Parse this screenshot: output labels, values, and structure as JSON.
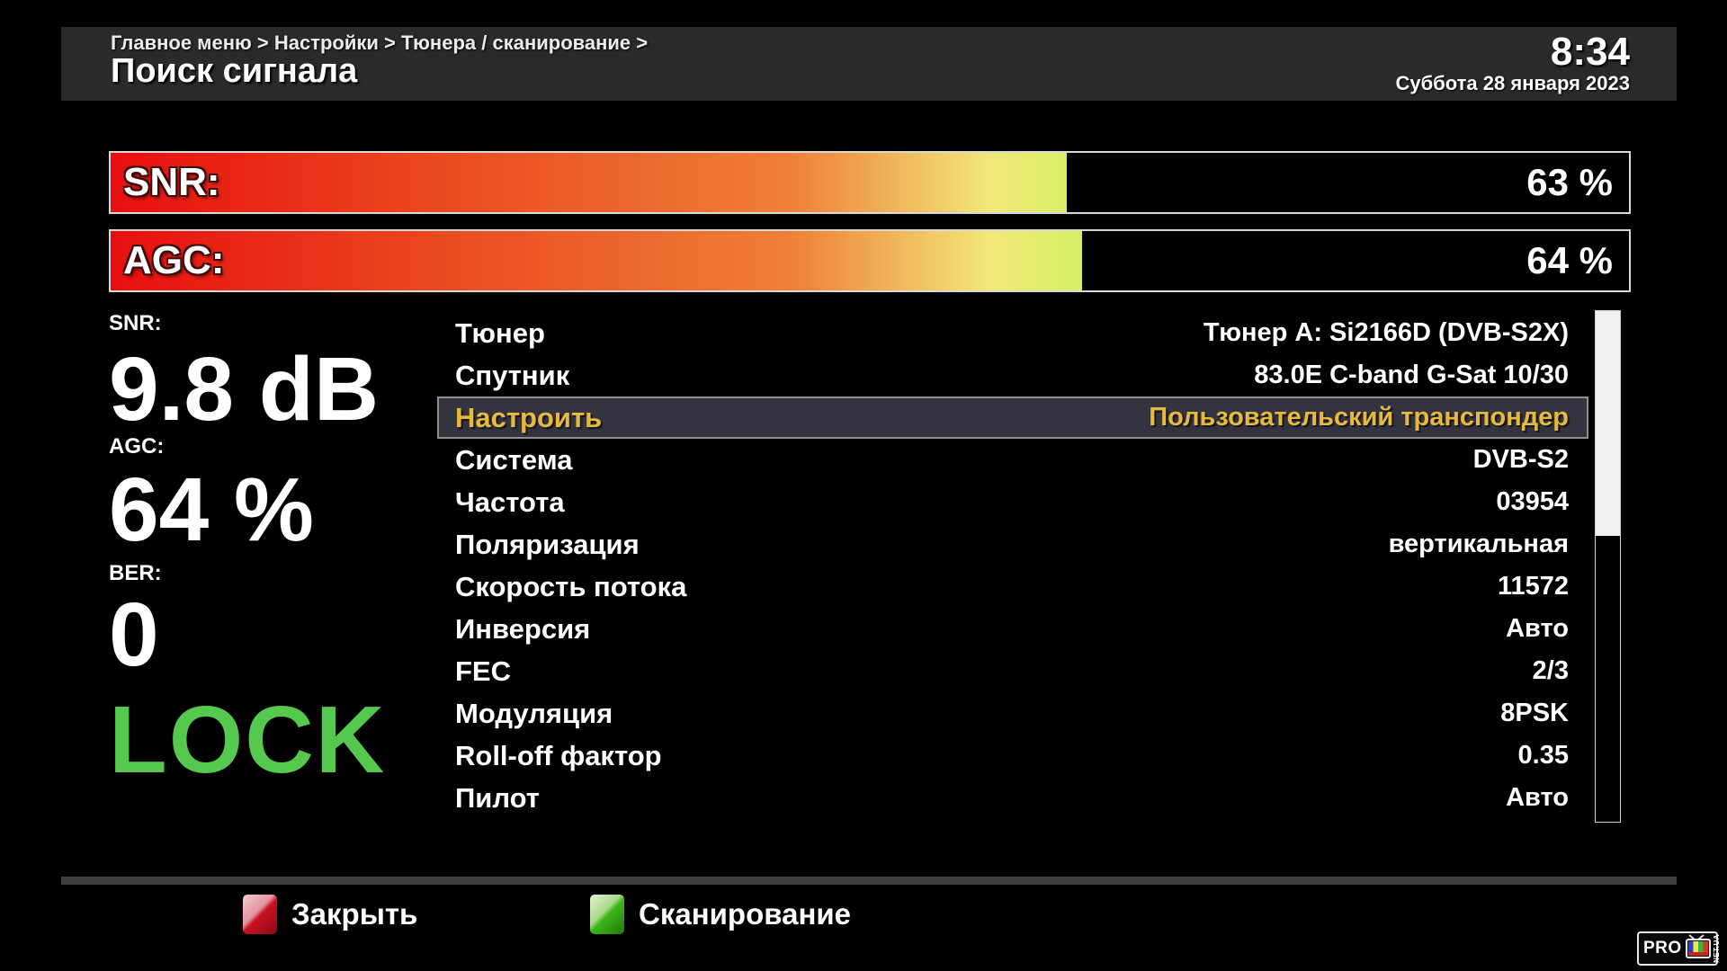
{
  "header": {
    "breadcrumb": "Главное меню > Настройки > Тюнера / сканирование >",
    "title": "Поиск сигнала",
    "clock": {
      "time": "8:34",
      "date": "Суббота 28 января 2023"
    }
  },
  "signal_bars": [
    {
      "label": "SNR:",
      "percent": 63,
      "value_text": "63 %"
    },
    {
      "label": "AGC:",
      "percent": 64,
      "value_text": "64 %"
    }
  ],
  "readouts": {
    "snr": {
      "label": "SNR:",
      "value": "9.8 dB"
    },
    "agc": {
      "label": "AGC:",
      "value": "64 %"
    },
    "ber": {
      "label": "BER:",
      "value": "0"
    },
    "lock": "LOCK"
  },
  "settings": {
    "rows": [
      {
        "label": "Тюнер",
        "value": "Тюнер A: Si2166D (DVB-S2X)",
        "selected": false
      },
      {
        "label": "Спутник",
        "value": "83.0E C-band G-Sat 10/30",
        "selected": false
      },
      {
        "label": "Настроить",
        "value": "Пользовательский транспондер",
        "selected": true
      },
      {
        "label": "Система",
        "value": "DVB-S2",
        "selected": false
      },
      {
        "label": "Частота",
        "value": "03954",
        "selected": false
      },
      {
        "label": "Поляризация",
        "value": "вертикальная",
        "selected": false
      },
      {
        "label": "Скорость потока",
        "value": "11572",
        "selected": false
      },
      {
        "label": "Инверсия",
        "value": "Авто",
        "selected": false
      },
      {
        "label": "FEC",
        "value": "2/3",
        "selected": false
      },
      {
        "label": "Модуляция",
        "value": "8PSK",
        "selected": false
      },
      {
        "label": "Roll-off фактор",
        "value": "0.35",
        "selected": false
      },
      {
        "label": "Пилот",
        "value": "Авто",
        "selected": false
      }
    ]
  },
  "scrollbar": {
    "thumb_percent": 44
  },
  "footer": {
    "keys": [
      {
        "color": "#c81122",
        "label": "Закрыть"
      },
      {
        "color": "#3ab517",
        "label": "Сканирование"
      }
    ]
  },
  "logo": {
    "pro": "PRO",
    "side": "NET.UA"
  },
  "colors": {
    "lock_green": "#55c94d",
    "selected_gold": "#e7ba3e",
    "header_bg": "#2a2a2a",
    "gradient_start_red": "#e80f0f",
    "gradient_end_visible": "#ccf15e"
  }
}
